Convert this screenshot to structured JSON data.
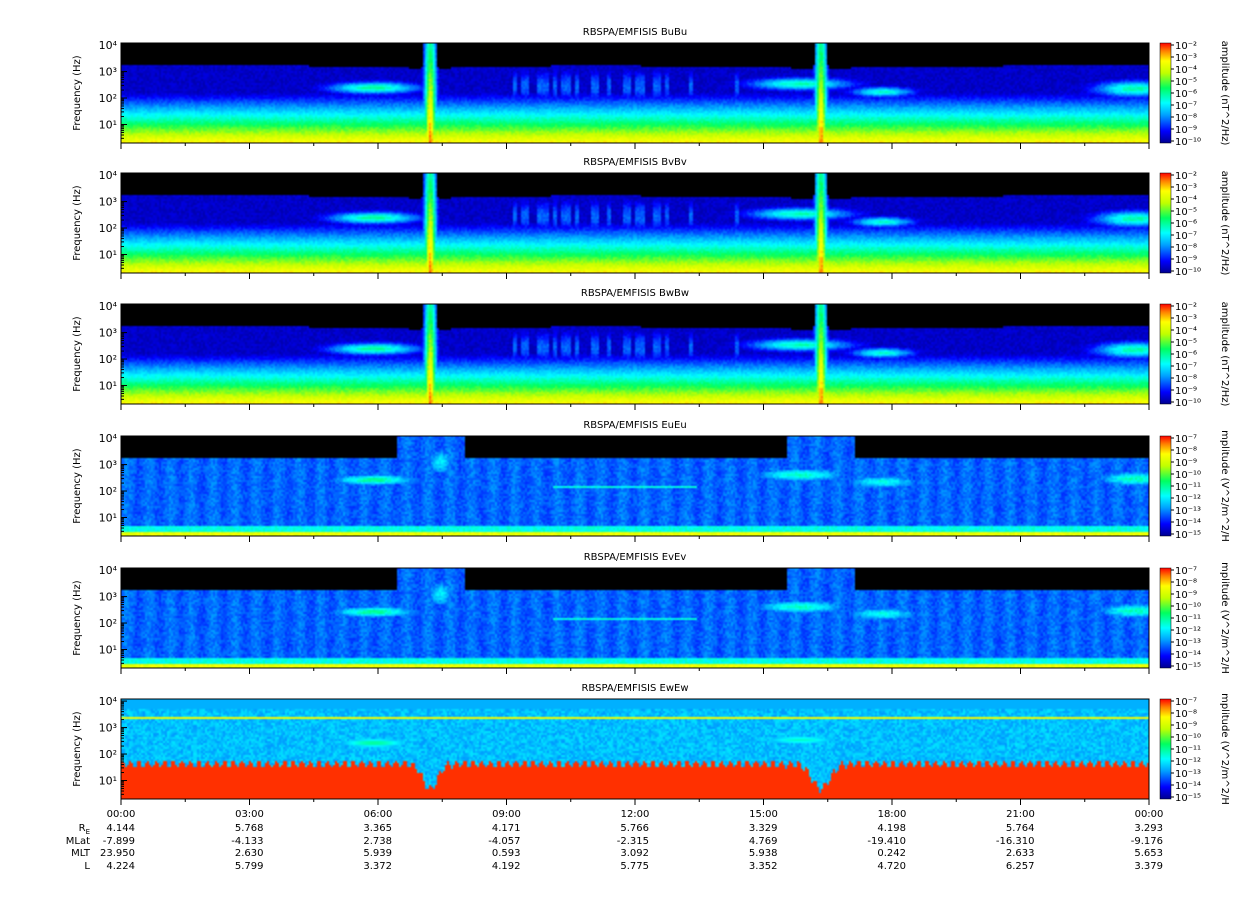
{
  "chart_data": [
    {
      "type": "heatmap",
      "title": "RBSPA/EMFISIS  BuBu",
      "ylabel": "Frequency (Hz)",
      "y_scale": "log",
      "ytick_labels": [
        "10¹",
        "10²",
        "10³",
        "10⁴"
      ],
      "y_ticks": [
        10,
        100,
        1000,
        10000
      ],
      "ylim": [
        2,
        12000
      ],
      "colorbar_label": "amplitude (nT^2/Hz)",
      "colorbar_ticks": [
        "10⁻²",
        "10⁻³",
        "10⁻⁴",
        "10⁻⁵",
        "10⁻⁶",
        "10⁻⁷",
        "10⁻⁸",
        "10⁻⁹",
        "10⁻¹⁰"
      ],
      "colorbar_range": [
        -10,
        -2
      ]
    },
    {
      "type": "heatmap",
      "title": "RBSPA/EMFISIS  BvBv",
      "ylabel": "Frequency (Hz)",
      "y_scale": "log",
      "ytick_labels": [
        "10¹",
        "10²",
        "10³",
        "10⁴"
      ],
      "y_ticks": [
        10,
        100,
        1000,
        10000
      ],
      "ylim": [
        2,
        12000
      ],
      "colorbar_label": "amplitude (nT^2/Hz)",
      "colorbar_ticks": [
        "10⁻²",
        "10⁻³",
        "10⁻⁴",
        "10⁻⁵",
        "10⁻⁶",
        "10⁻⁷",
        "10⁻⁸",
        "10⁻⁹",
        "10⁻¹⁰"
      ],
      "colorbar_range": [
        -10,
        -2
      ]
    },
    {
      "type": "heatmap",
      "title": "RBSPA/EMFISIS  BwBw",
      "ylabel": "Frequency (Hz)",
      "y_scale": "log",
      "ytick_labels": [
        "10¹",
        "10²",
        "10³",
        "10⁴"
      ],
      "y_ticks": [
        10,
        100,
        1000,
        10000
      ],
      "ylim": [
        2,
        12000
      ],
      "colorbar_label": "amplitude (nT^2/Hz)",
      "colorbar_ticks": [
        "10⁻²",
        "10⁻³",
        "10⁻⁴",
        "10⁻⁵",
        "10⁻⁶",
        "10⁻⁷",
        "10⁻⁸",
        "10⁻⁹",
        "10⁻¹⁰"
      ],
      "colorbar_range": [
        -10,
        -2
      ]
    },
    {
      "type": "heatmap",
      "title": "RBSPA/EMFISIS  EuEu",
      "ylabel": "Frequency (Hz)",
      "y_scale": "log",
      "ytick_labels": [
        "10¹",
        "10²",
        "10³",
        "10⁴"
      ],
      "y_ticks": [
        10,
        100,
        1000,
        10000
      ],
      "ylim": [
        2,
        12000
      ],
      "colorbar_label": "mplitude (V^2/m^2/H",
      "colorbar_ticks": [
        "10⁻⁷",
        "10⁻⁸",
        "10⁻⁹",
        "10⁻¹⁰",
        "10⁻¹¹",
        "10⁻¹²",
        "10⁻¹³",
        "10⁻¹⁴",
        "10⁻¹⁵"
      ],
      "colorbar_range": [
        -15,
        -7
      ]
    },
    {
      "type": "heatmap",
      "title": "RBSPA/EMFISIS  EvEv",
      "ylabel": "Frequency (Hz)",
      "y_scale": "log",
      "ytick_labels": [
        "10¹",
        "10²",
        "10³",
        "10⁴"
      ],
      "y_ticks": [
        10,
        100,
        1000,
        10000
      ],
      "ylim": [
        2,
        12000
      ],
      "colorbar_label": "mplitude (V^2/m^2/H",
      "colorbar_ticks": [
        "10⁻⁷",
        "10⁻⁸",
        "10⁻⁹",
        "10⁻¹⁰",
        "10⁻¹¹",
        "10⁻¹²",
        "10⁻¹³",
        "10⁻¹⁴",
        "10⁻¹⁵"
      ],
      "colorbar_range": [
        -15,
        -7
      ]
    },
    {
      "type": "heatmap",
      "title": "RBSPA/EMFISIS  EwEw",
      "ylabel": "Frequency (Hz)",
      "y_scale": "log",
      "ytick_labels": [
        "10¹",
        "10²",
        "10³",
        "10⁴"
      ],
      "y_ticks": [
        10,
        100,
        1000,
        10000
      ],
      "ylim": [
        2,
        12000
      ],
      "colorbar_label": "mplitude (V^2/m^2/H",
      "colorbar_ticks": [
        "10⁻⁷",
        "10⁻⁸",
        "10⁻⁹",
        "10⁻¹⁰",
        "10⁻¹¹",
        "10⁻¹²",
        "10⁻¹³",
        "10⁻¹⁴",
        "10⁻¹⁵"
      ],
      "colorbar_range": [
        -15,
        -7
      ]
    }
  ],
  "xaxis": {
    "tick_labels": [
      "00:00",
      "03:00",
      "06:00",
      "09:00",
      "12:00",
      "15:00",
      "18:00",
      "21:00",
      "00:00"
    ],
    "minor_ticks_per_major": 2
  },
  "ephemeris": {
    "row_labels": [
      "R_E",
      "MLat",
      "MLT",
      "L"
    ],
    "rows": [
      [
        "4.144",
        "5.768",
        "3.365",
        "4.171",
        "5.766",
        "3.329",
        "4.198",
        "5.764",
        "3.293"
      ],
      [
        "-7.899",
        "-4.133",
        "2.738",
        "-4.057",
        "-2.315",
        "4.769",
        "-19.410",
        "-16.310",
        "-9.176"
      ],
      [
        "23.950",
        "2.630",
        "5.939",
        "0.593",
        "3.092",
        "5.938",
        "0.242",
        "2.633",
        "5.653"
      ],
      [
        "4.224",
        "5.799",
        "3.372",
        "4.192",
        "5.775",
        "3.352",
        "4.720",
        "6.257",
        "3.379"
      ]
    ]
  }
}
